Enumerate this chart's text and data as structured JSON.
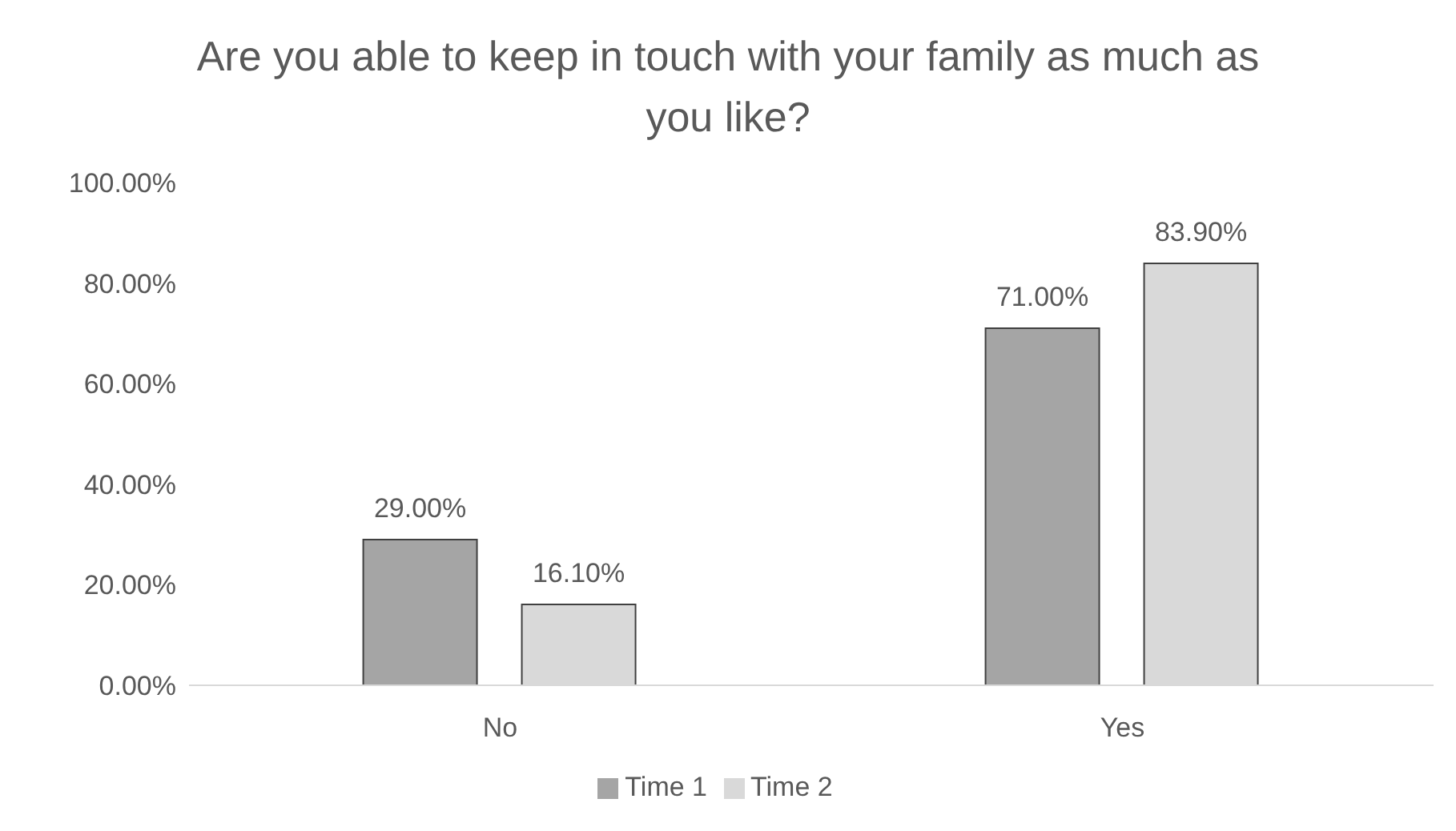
{
  "chart_data": {
    "type": "bar",
    "title": "Are you able to keep in touch with your family as much as you like?",
    "categories": [
      "No",
      "Yes"
    ],
    "series": [
      {
        "name": "Time 1",
        "color": "#a5a5a5",
        "values": [
          29,
          71
        ],
        "value_labels": [
          "29.00%",
          "71.00%"
        ]
      },
      {
        "name": "Time 2",
        "color": "#d9d9d9",
        "values": [
          16.1,
          83.9
        ],
        "value_labels": [
          "16.10%",
          "83.90%"
        ]
      }
    ],
    "ylim": [
      0,
      100
    ],
    "yticks": [
      {
        "value": 0,
        "label": "0.00%"
      },
      {
        "value": 20,
        "label": "20.00%"
      },
      {
        "value": 40,
        "label": "40.00%"
      },
      {
        "value": 60,
        "label": "60.00%"
      },
      {
        "value": 80,
        "label": "80.00%"
      },
      {
        "value": 100,
        "label": "100.00%"
      }
    ],
    "grid": false,
    "legend": "bottom"
  }
}
